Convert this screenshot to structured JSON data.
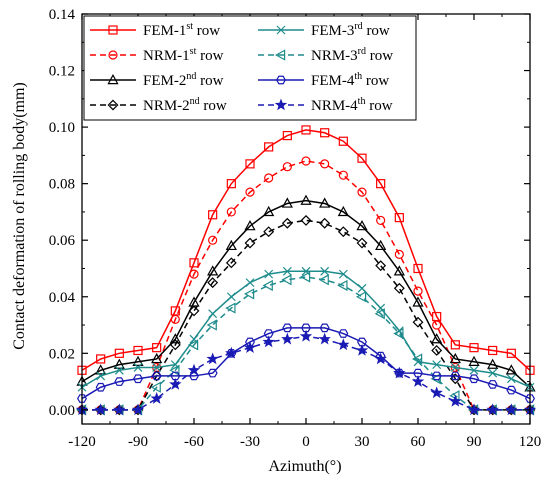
{
  "chart_data": {
    "type": "line",
    "xlabel": "Azimuth(°)",
    "ylabel": "Contact deformation of rolling body(mm)",
    "xlim": [
      -120,
      120
    ],
    "ylim": [
      -0.005,
      0.14
    ],
    "xticks": [
      -120,
      -90,
      -60,
      -30,
      0,
      30,
      60,
      90,
      120
    ],
    "yticks": [
      "0.00",
      "0.02",
      "0.04",
      "0.06",
      "0.08",
      "0.10",
      "0.12",
      "0.14"
    ],
    "grid": false,
    "legend_position": "top-left",
    "x": [
      -120,
      -110,
      -100,
      -90,
      -80,
      -70,
      -60,
      -50,
      -40,
      -30,
      -20,
      -10,
      0,
      10,
      20,
      30,
      40,
      50,
      60,
      70,
      80,
      90,
      100,
      110,
      120
    ],
    "series": [
      {
        "legend": {
          "base": "FEM-1",
          "sup": "st",
          "rest": " row"
        },
        "color": "#ff0000",
        "dash": "solid",
        "marker": "square",
        "values": [
          0.014,
          0.018,
          0.02,
          0.021,
          0.022,
          0.035,
          0.052,
          0.069,
          0.08,
          0.087,
          0.093,
          0.097,
          0.099,
          0.098,
          0.095,
          0.089,
          0.08,
          0.068,
          0.05,
          0.033,
          0.023,
          0.022,
          0.021,
          0.02,
          0.014
        ]
      },
      {
        "legend": {
          "base": "NRM-1",
          "sup": "st",
          "rest": " row"
        },
        "color": "#ff0000",
        "dash": "dashed",
        "marker": "circle",
        "values": [
          0.0,
          0.0,
          0.0,
          0.0,
          0.015,
          0.032,
          0.048,
          0.06,
          0.07,
          0.077,
          0.082,
          0.086,
          0.088,
          0.087,
          0.083,
          0.077,
          0.067,
          0.055,
          0.042,
          0.03,
          0.015,
          0.0,
          0.0,
          0.0,
          0.0
        ]
      },
      {
        "legend": {
          "base": "FEM-2",
          "sup": "nd",
          "rest": " row"
        },
        "color": "#000000",
        "dash": "solid",
        "marker": "triangle",
        "values": [
          0.01,
          0.014,
          0.016,
          0.017,
          0.018,
          0.025,
          0.038,
          0.049,
          0.058,
          0.065,
          0.07,
          0.073,
          0.074,
          0.073,
          0.07,
          0.065,
          0.058,
          0.049,
          0.038,
          0.025,
          0.018,
          0.017,
          0.016,
          0.014,
          0.008
        ]
      },
      {
        "legend": {
          "base": "NRM-2",
          "sup": "nd",
          "rest": " row"
        },
        "color": "#000000",
        "dash": "dashed",
        "marker": "diamond",
        "values": [
          0.0,
          0.0,
          0.0,
          0.0,
          0.012,
          0.023,
          0.035,
          0.045,
          0.052,
          0.059,
          0.063,
          0.066,
          0.067,
          0.066,
          0.063,
          0.059,
          0.051,
          0.043,
          0.031,
          0.021,
          0.011,
          0.0,
          0.0,
          0.0,
          0.0
        ]
      },
      {
        "legend": {
          "base": "FEM-3",
          "sup": "rd",
          "rest": " row"
        },
        "color": "#1f8c8c",
        "dash": "solid",
        "marker": "x",
        "values": [
          0.008,
          0.012,
          0.014,
          0.015,
          0.015,
          0.016,
          0.025,
          0.034,
          0.04,
          0.045,
          0.048,
          0.049,
          0.049,
          0.049,
          0.048,
          0.043,
          0.036,
          0.028,
          0.017,
          0.016,
          0.015,
          0.014,
          0.013,
          0.011,
          0.008
        ]
      },
      {
        "legend": {
          "base": "NRM-3",
          "sup": "rd",
          "rest": " row"
        },
        "color": "#1f8c8c",
        "dash": "dashed",
        "marker": "triangle-left",
        "values": [
          0.0,
          0.0,
          0.0,
          0.0,
          0.008,
          0.014,
          0.023,
          0.03,
          0.036,
          0.041,
          0.044,
          0.046,
          0.047,
          0.046,
          0.044,
          0.04,
          0.034,
          0.027,
          0.018,
          0.011,
          0.005,
          0.0,
          0.0,
          0.0,
          0.0
        ]
      },
      {
        "legend": {
          "base": "FEM-4",
          "sup": "th",
          "rest": " row"
        },
        "color": "#1a1ab4",
        "dash": "solid",
        "marker": "hexagon",
        "values": [
          0.004,
          0.008,
          0.01,
          0.011,
          0.012,
          0.012,
          0.012,
          0.013,
          0.02,
          0.024,
          0.027,
          0.029,
          0.029,
          0.029,
          0.027,
          0.024,
          0.019,
          0.013,
          0.013,
          0.012,
          0.012,
          0.011,
          0.009,
          0.007,
          0.004
        ]
      },
      {
        "legend": {
          "base": "NRM-4",
          "sup": "th",
          "rest": " row"
        },
        "color": "#1a1ab4",
        "dash": "dashed",
        "marker": "star",
        "values": [
          0.0,
          0.0,
          0.0,
          0.0,
          0.004,
          0.009,
          0.014,
          0.018,
          0.02,
          0.022,
          0.024,
          0.025,
          0.026,
          0.025,
          0.023,
          0.021,
          0.018,
          0.013,
          0.01,
          0.006,
          0.003,
          0.0,
          0.0,
          0.0,
          0.0
        ]
      }
    ]
  }
}
